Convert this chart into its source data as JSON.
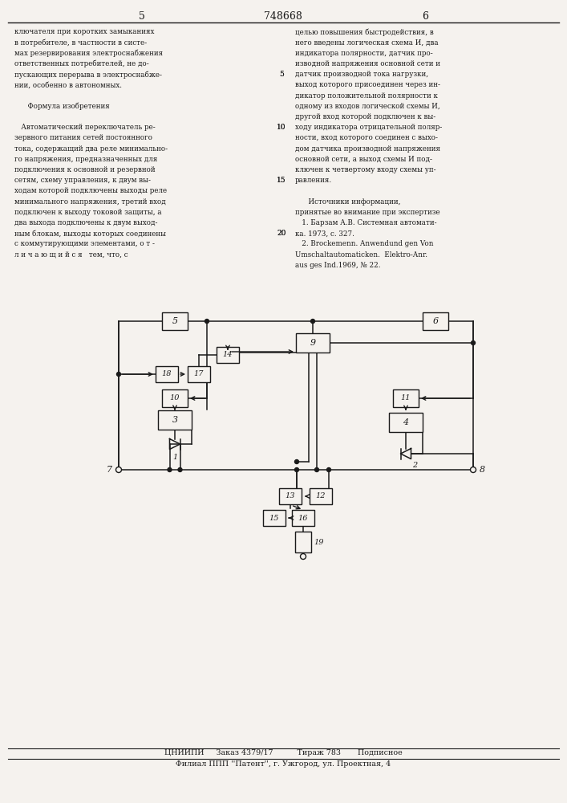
{
  "background_color": "#f5f2ee",
  "line_color": "#1a1a1a",
  "page_left": "5",
  "page_right": "6",
  "patent_number": "748668",
  "footer_line1": "ЦНИИПИ     Заказ 4379/17          Тираж 783       Подписное",
  "footer_line2": "Филиал ППП ''Патент'', г. Ужгород, ул. Проектная, 4"
}
